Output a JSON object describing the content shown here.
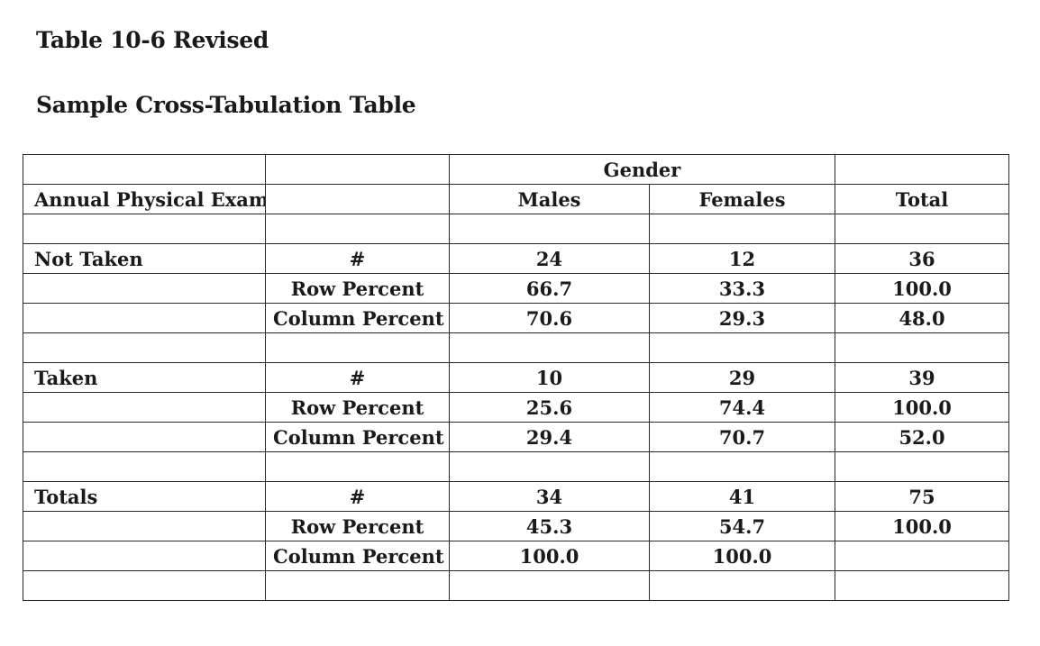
{
  "title": "Table 10-6 Revised",
  "subtitle": "Sample Cross-Tabulation Table",
  "table": {
    "group_header": "Gender",
    "row_header": "Annual Physical Exam",
    "col_males": "Males",
    "col_females": "Females",
    "col_total": "Total",
    "groups": [
      {
        "label": "Not Taken",
        "rows": [
          {
            "measure": "#",
            "males": "24",
            "females": "12",
            "total": "36"
          },
          {
            "measure": "Row Percent",
            "males": "66.7",
            "females": "33.3",
            "total": "100.0"
          },
          {
            "measure": "Column Percent",
            "males": "70.6",
            "females": "29.3",
            "total": "48.0"
          }
        ]
      },
      {
        "label": "Taken",
        "rows": [
          {
            "measure": "#",
            "males": "10",
            "females": "29",
            "total": "39"
          },
          {
            "measure": "Row Percent",
            "males": "25.6",
            "females": "74.4",
            "total": "100.0"
          },
          {
            "measure": "Column Percent",
            "males": "29.4",
            "females": "70.7",
            "total": "52.0"
          }
        ]
      },
      {
        "label": "Totals",
        "rows": [
          {
            "measure": "#",
            "males": "34",
            "females": "41",
            "total": "75"
          },
          {
            "measure": "Row Percent",
            "males": "45.3",
            "females": "54.7",
            "total": "100.0"
          },
          {
            "measure": "Column Percent",
            "males": "100.0",
            "females": "100.0",
            "total": ""
          }
        ]
      }
    ]
  }
}
